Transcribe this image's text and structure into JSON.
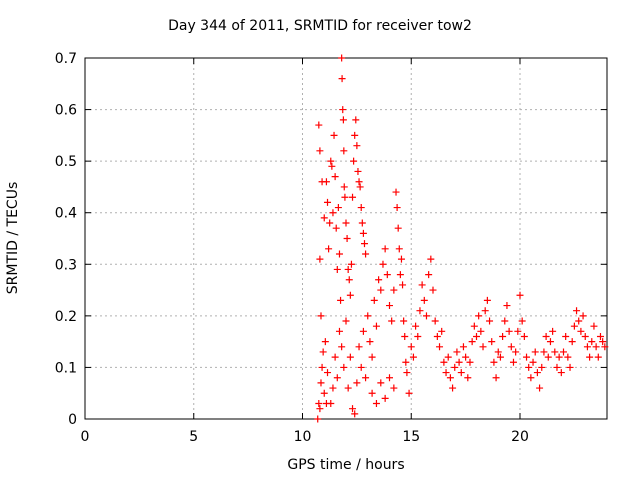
{
  "chart_data": {
    "type": "scatter",
    "title": "Day 344 of 2011, SRMTID for receiver tow2",
    "xlabel": "GPS time / hours",
    "ylabel": "SRMTID / TECUs",
    "xlim": [
      0,
      24
    ],
    "ylim": [
      0,
      0.7
    ],
    "xticks": [
      0,
      5,
      10,
      15,
      20
    ],
    "yticks": [
      0,
      0.1,
      0.2,
      0.3,
      0.4,
      0.5,
      0.6,
      0.7
    ],
    "grid": true,
    "marker": "+",
    "color": "#ff0000",
    "series": [
      {
        "name": "SRMTID",
        "points": [
          [
            10.7,
            0.0
          ],
          [
            10.75,
            0.03
          ],
          [
            10.8,
            0.02
          ],
          [
            10.85,
            0.07
          ],
          [
            10.9,
            0.1
          ],
          [
            10.95,
            0.13
          ],
          [
            11.0,
            0.05
          ],
          [
            11.05,
            0.15
          ],
          [
            11.1,
            0.03
          ],
          [
            11.15,
            0.09
          ],
          [
            10.75,
            0.57
          ],
          [
            10.8,
            0.52
          ],
          [
            10.8,
            0.31
          ],
          [
            10.85,
            0.2
          ],
          [
            10.9,
            0.46
          ],
          [
            11.0,
            0.39
          ],
          [
            11.1,
            0.46
          ],
          [
            11.15,
            0.42
          ],
          [
            11.2,
            0.33
          ],
          [
            11.25,
            0.38
          ],
          [
            11.3,
            0.5
          ],
          [
            11.35,
            0.49
          ],
          [
            11.4,
            0.4
          ],
          [
            11.45,
            0.55
          ],
          [
            11.5,
            0.47
          ],
          [
            11.55,
            0.37
          ],
          [
            11.6,
            0.29
          ],
          [
            11.65,
            0.41
          ],
          [
            11.7,
            0.32
          ],
          [
            11.75,
            0.23
          ],
          [
            11.8,
            0.7
          ],
          [
            11.82,
            0.66
          ],
          [
            11.85,
            0.6
          ],
          [
            11.88,
            0.58
          ],
          [
            11.9,
            0.52
          ],
          [
            11.92,
            0.45
          ],
          [
            11.95,
            0.43
          ],
          [
            12.0,
            0.38
          ],
          [
            12.05,
            0.35
          ],
          [
            12.1,
            0.29
          ],
          [
            12.15,
            0.27
          ],
          [
            12.2,
            0.24
          ],
          [
            12.25,
            0.3
          ],
          [
            12.3,
            0.43
          ],
          [
            12.35,
            0.5
          ],
          [
            12.4,
            0.55
          ],
          [
            12.45,
            0.58
          ],
          [
            12.5,
            0.53
          ],
          [
            12.55,
            0.48
          ],
          [
            12.6,
            0.46
          ],
          [
            12.65,
            0.45
          ],
          [
            12.7,
            0.41
          ],
          [
            12.75,
            0.38
          ],
          [
            12.8,
            0.36
          ],
          [
            12.85,
            0.34
          ],
          [
            12.9,
            0.32
          ],
          [
            11.3,
            0.03
          ],
          [
            11.4,
            0.06
          ],
          [
            11.5,
            0.12
          ],
          [
            11.6,
            0.08
          ],
          [
            11.7,
            0.17
          ],
          [
            11.8,
            0.14
          ],
          [
            11.9,
            0.1
          ],
          [
            12.0,
            0.19
          ],
          [
            12.1,
            0.06
          ],
          [
            12.2,
            0.12
          ],
          [
            12.3,
            0.02
          ],
          [
            12.4,
            0.01
          ],
          [
            12.5,
            0.07
          ],
          [
            12.6,
            0.14
          ],
          [
            12.7,
            0.1
          ],
          [
            12.8,
            0.17
          ],
          [
            12.9,
            0.08
          ],
          [
            13.0,
            0.2
          ],
          [
            13.1,
            0.15
          ],
          [
            13.2,
            0.12
          ],
          [
            13.3,
            0.23
          ],
          [
            13.4,
            0.18
          ],
          [
            13.5,
            0.27
          ],
          [
            13.6,
            0.25
          ],
          [
            13.7,
            0.3
          ],
          [
            13.8,
            0.33
          ],
          [
            13.9,
            0.28
          ],
          [
            14.0,
            0.22
          ],
          [
            14.1,
            0.19
          ],
          [
            14.2,
            0.25
          ],
          [
            14.3,
            0.44
          ],
          [
            14.35,
            0.41
          ],
          [
            14.4,
            0.37
          ],
          [
            14.45,
            0.33
          ],
          [
            14.5,
            0.28
          ],
          [
            14.55,
            0.31
          ],
          [
            14.6,
            0.26
          ],
          [
            14.65,
            0.19
          ],
          [
            14.7,
            0.16
          ],
          [
            14.75,
            0.11
          ],
          [
            14.8,
            0.09
          ],
          [
            14.9,
            0.05
          ],
          [
            13.2,
            0.05
          ],
          [
            13.4,
            0.03
          ],
          [
            13.6,
            0.07
          ],
          [
            13.8,
            0.04
          ],
          [
            14.0,
            0.08
          ],
          [
            14.2,
            0.06
          ],
          [
            15.0,
            0.14
          ],
          [
            15.1,
            0.12
          ],
          [
            15.2,
            0.18
          ],
          [
            15.3,
            0.16
          ],
          [
            15.4,
            0.21
          ],
          [
            15.5,
            0.26
          ],
          [
            15.6,
            0.23
          ],
          [
            15.7,
            0.2
          ],
          [
            15.8,
            0.28
          ],
          [
            15.9,
            0.31
          ],
          [
            16.0,
            0.25
          ],
          [
            16.1,
            0.19
          ],
          [
            16.2,
            0.16
          ],
          [
            16.3,
            0.14
          ],
          [
            16.4,
            0.17
          ],
          [
            16.5,
            0.11
          ],
          [
            16.6,
            0.09
          ],
          [
            16.7,
            0.12
          ],
          [
            16.8,
            0.08
          ],
          [
            16.9,
            0.06
          ],
          [
            17.0,
            0.1
          ],
          [
            17.1,
            0.13
          ],
          [
            17.2,
            0.11
          ],
          [
            17.3,
            0.09
          ],
          [
            17.4,
            0.14
          ],
          [
            17.5,
            0.12
          ],
          [
            17.6,
            0.08
          ],
          [
            17.7,
            0.11
          ],
          [
            17.8,
            0.15
          ],
          [
            17.9,
            0.18
          ],
          [
            18.0,
            0.16
          ],
          [
            18.1,
            0.2
          ],
          [
            18.2,
            0.17
          ],
          [
            18.3,
            0.14
          ],
          [
            18.4,
            0.21
          ],
          [
            18.5,
            0.23
          ],
          [
            18.6,
            0.19
          ],
          [
            18.7,
            0.15
          ],
          [
            18.8,
            0.11
          ],
          [
            18.9,
            0.08
          ],
          [
            19.0,
            0.13
          ],
          [
            19.1,
            0.12
          ],
          [
            19.2,
            0.16
          ],
          [
            19.3,
            0.19
          ],
          [
            19.4,
            0.22
          ],
          [
            19.5,
            0.17
          ],
          [
            19.6,
            0.14
          ],
          [
            19.7,
            0.11
          ],
          [
            19.8,
            0.13
          ],
          [
            19.9,
            0.17
          ],
          [
            20.0,
            0.24
          ],
          [
            20.1,
            0.19
          ],
          [
            20.2,
            0.16
          ],
          [
            20.3,
            0.12
          ],
          [
            20.4,
            0.1
          ],
          [
            20.5,
            0.08
          ],
          [
            20.6,
            0.11
          ],
          [
            20.7,
            0.13
          ],
          [
            20.8,
            0.09
          ],
          [
            20.9,
            0.06
          ],
          [
            21.0,
            0.1
          ],
          [
            21.1,
            0.13
          ],
          [
            21.2,
            0.16
          ],
          [
            21.3,
            0.12
          ],
          [
            21.4,
            0.15
          ],
          [
            21.5,
            0.17
          ],
          [
            21.6,
            0.13
          ],
          [
            21.7,
            0.1
          ],
          [
            21.8,
            0.12
          ],
          [
            21.9,
            0.09
          ],
          [
            22.0,
            0.13
          ],
          [
            22.1,
            0.16
          ],
          [
            22.2,
            0.12
          ],
          [
            22.3,
            0.1
          ],
          [
            22.4,
            0.15
          ],
          [
            22.5,
            0.18
          ],
          [
            22.6,
            0.21
          ],
          [
            22.7,
            0.19
          ],
          [
            22.8,
            0.17
          ],
          [
            22.9,
            0.2
          ],
          [
            23.0,
            0.16
          ],
          [
            23.1,
            0.14
          ],
          [
            23.2,
            0.12
          ],
          [
            23.3,
            0.15
          ],
          [
            23.4,
            0.18
          ],
          [
            23.5,
            0.14
          ],
          [
            23.6,
            0.12
          ],
          [
            23.7,
            0.16
          ],
          [
            23.8,
            0.15
          ],
          [
            23.9,
            0.14
          ]
        ]
      }
    ]
  }
}
